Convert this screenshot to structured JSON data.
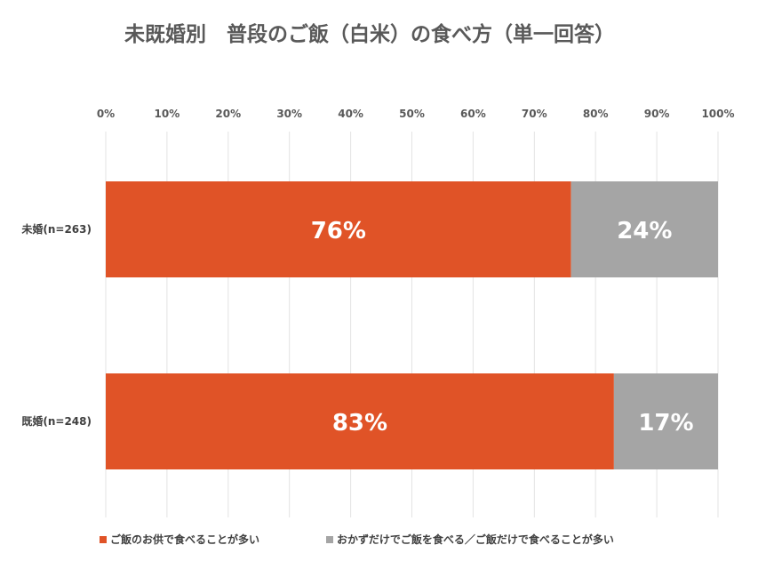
{
  "chart_data": {
    "type": "bar",
    "orientation": "horizontal",
    "stacked": true,
    "title": "未既婚別　普段のご飯（白米）の食べ方（単一回答）",
    "categories": [
      "未婚(n=263)",
      "既婚(n=248)"
    ],
    "x_ticks": [
      "0%",
      "10%",
      "20%",
      "30%",
      "40%",
      "50%",
      "60%",
      "70%",
      "80%",
      "90%",
      "100%"
    ],
    "xlim": [
      0,
      100
    ],
    "grid": true,
    "legend_position": "bottom",
    "series": [
      {
        "name": "ご飯のお供で食べることが多い",
        "color": "#E05327",
        "values": [
          76,
          83
        ],
        "labels": [
          "76%",
          "83%"
        ]
      },
      {
        "name": "おかずだけでご飯を食べる／ご飯だけで食べることが多い",
        "color": "#A5A5A5",
        "values": [
          24,
          17
        ],
        "labels": [
          "24%",
          "17%"
        ]
      }
    ]
  }
}
